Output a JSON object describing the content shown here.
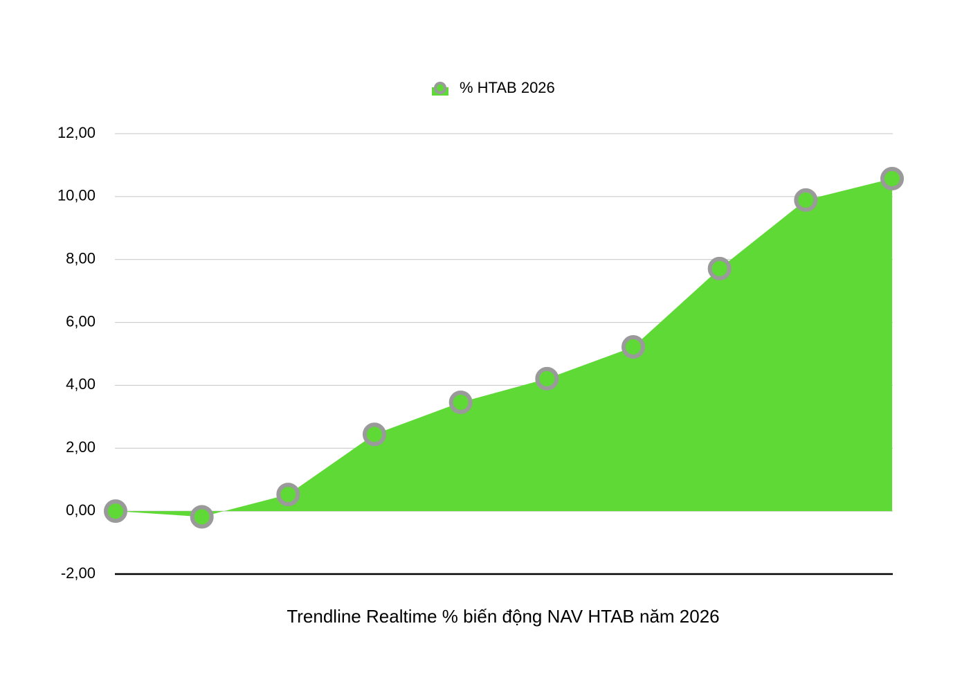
{
  "chart_data": {
    "type": "area",
    "xlabel": "Trendline Realtime % biến động NAV HTAB năm 2026",
    "categories": [
      null,
      null,
      null,
      null,
      null,
      null,
      null,
      null,
      null,
      null
    ],
    "series": [
      {
        "name": "% HTAB 2026",
        "color": "#5fd936",
        "marker_color": "#9a9a9a",
        "values": [
          0,
          -0.18,
          0.53,
          2.44,
          3.46,
          4.21,
          5.22,
          7.71,
          9.89,
          10.57
        ]
      }
    ],
    "ylim": [
      -2,
      12
    ],
    "yticks": [
      {
        "value": -2,
        "label": "-2,00"
      },
      {
        "value": 0,
        "label": "0,00"
      },
      {
        "value": 2,
        "label": "2,00"
      },
      {
        "value": 4,
        "label": "4,00"
      },
      {
        "value": 6,
        "label": "6,00"
      },
      {
        "value": 8,
        "label": "8,00"
      },
      {
        "value": 10,
        "label": "10,00"
      },
      {
        "value": 12,
        "label": "12,00"
      }
    ],
    "grid": true,
    "legend": "top"
  }
}
